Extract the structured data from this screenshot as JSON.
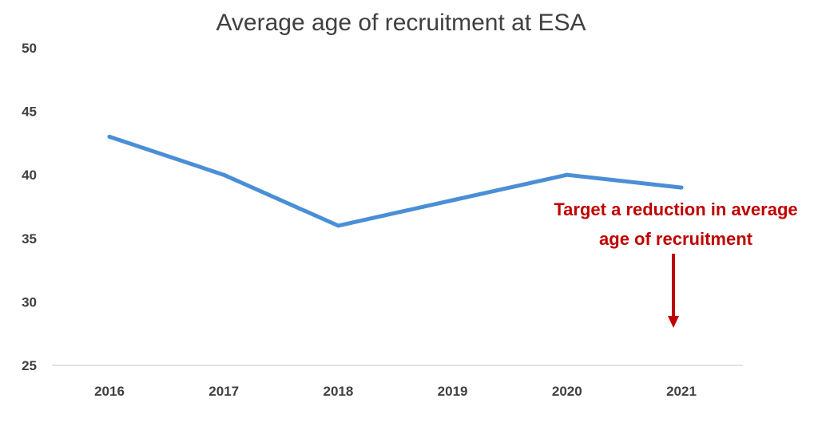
{
  "chart_data": {
    "type": "line",
    "title": "Average age of recruitment at ESA",
    "xlabel": "",
    "ylabel": "",
    "categories": [
      "2016",
      "2017",
      "2018",
      "2019",
      "2020",
      "2021"
    ],
    "series": [
      {
        "name": "Average age of recruitment",
        "values": [
          43,
          40,
          36,
          38,
          40,
          39
        ]
      }
    ],
    "ylim": [
      25,
      50
    ],
    "yticks": [
      "25",
      "30",
      "35",
      "40",
      "45",
      "50"
    ],
    "grid": false,
    "legend": "none",
    "annotation": {
      "line1": "Target a reduction in average",
      "line2": "age of recruitment",
      "arrow_direction": "down"
    }
  },
  "colors": {
    "line": "#4a8fd6",
    "annotation": "#c00000",
    "text": "#404040",
    "axis": "#d9d9d9"
  }
}
